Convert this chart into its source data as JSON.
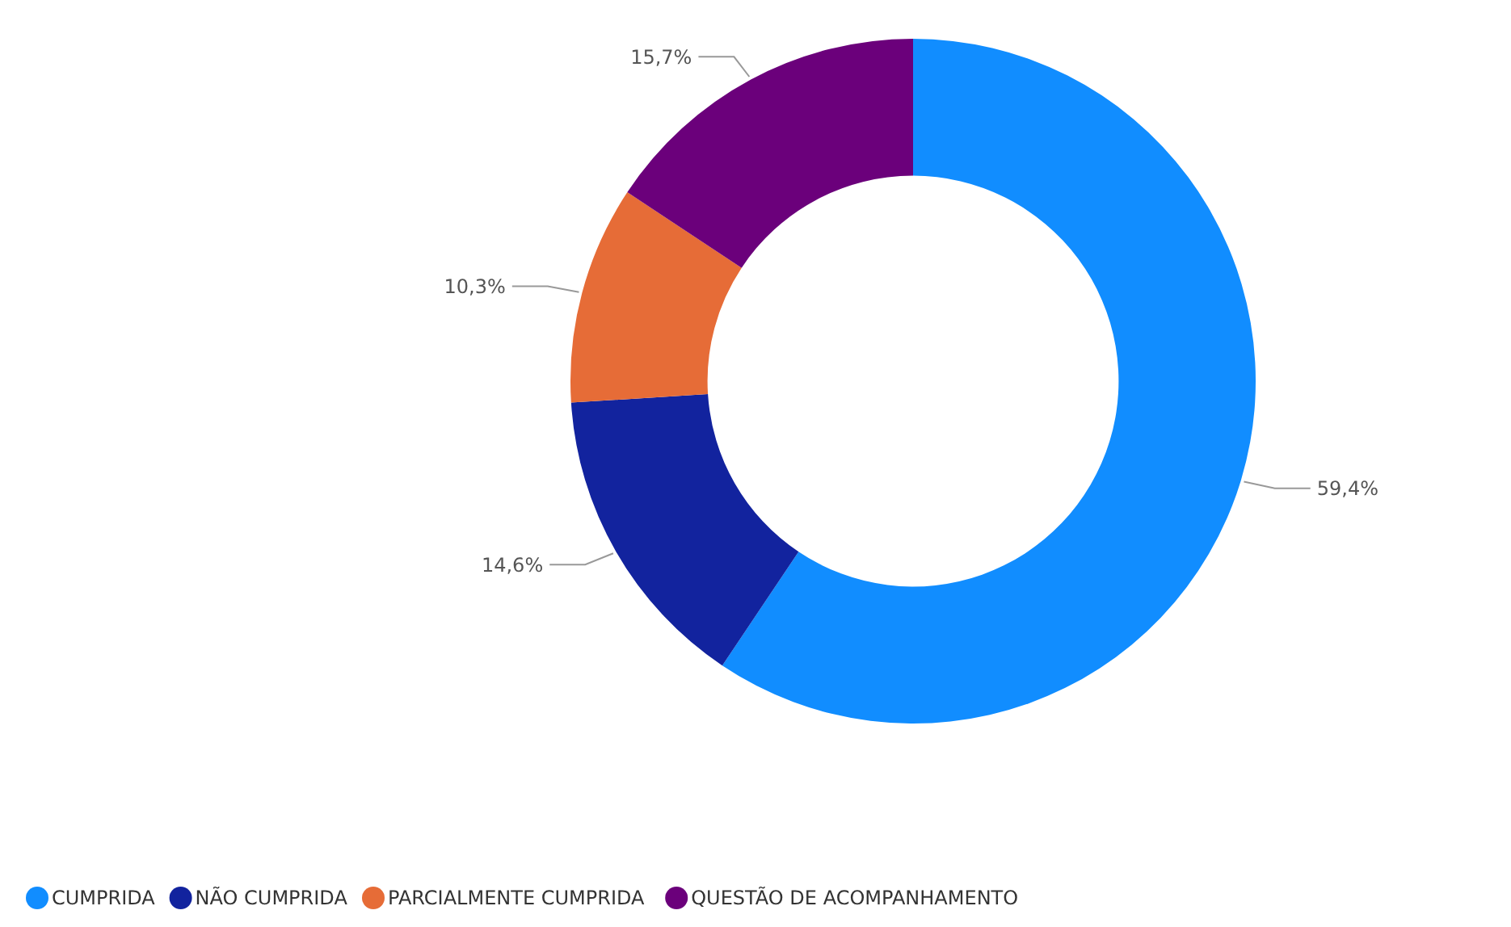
{
  "chart_data": {
    "type": "donut",
    "categories": [
      "CUMPRIDA",
      "NÃO CUMPRIDA",
      "PARCIALMENTE CUMPRIDA",
      "QUESTÃO DE ACOMPANHAMENTO"
    ],
    "values": [
      59.4,
      14.6,
      10.3,
      15.7
    ],
    "value_labels": [
      "59,4%",
      "14,6%",
      "10,3%",
      "15,7%"
    ],
    "colors": [
      "#118dff",
      "#12239e",
      "#e66c37",
      "#6b007b"
    ],
    "legend": "bottom left"
  }
}
